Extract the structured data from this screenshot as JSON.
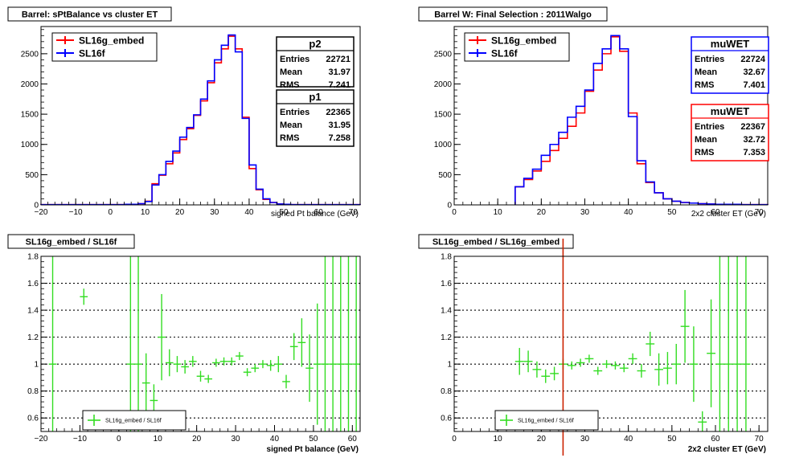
{
  "chart_data": [
    {
      "type": "line",
      "title": "Barrel: sPtBalance vs cluster ET",
      "xlabel": "signed Pt balance (GeV)",
      "ylabel": "",
      "xlim": [
        -20,
        72
      ],
      "ylim": [
        0,
        2950
      ],
      "xticks": [
        -20,
        -10,
        0,
        10,
        20,
        30,
        40,
        50,
        60,
        70
      ],
      "yticks": [
        0,
        500,
        1000,
        1500,
        2000,
        2500
      ],
      "grid": false,
      "legend": "top-left",
      "bin_width": 2,
      "x": [
        -20,
        -18,
        -16,
        -14,
        -12,
        -10,
        -8,
        -6,
        -4,
        -2,
        0,
        2,
        4,
        6,
        8,
        10,
        12,
        14,
        16,
        18,
        20,
        22,
        24,
        26,
        28,
        30,
        32,
        34,
        36,
        38,
        40,
        42,
        44,
        46,
        48,
        50,
        52,
        54,
        56,
        58,
        60,
        62,
        64,
        66,
        68,
        70
      ],
      "series": [
        {
          "name": "SL16g_embed",
          "color": "#ff0000",
          "values": [
            5,
            5,
            5,
            5,
            5,
            5,
            5,
            5,
            5,
            5,
            5,
            5,
            10,
            10,
            20,
            60,
            350,
            490,
            680,
            860,
            1080,
            1260,
            1480,
            1720,
            2020,
            2350,
            2580,
            2790,
            2580,
            1450,
            600,
            250,
            90,
            40,
            15,
            10,
            5,
            5,
            5,
            5,
            5,
            5,
            5,
            5,
            5,
            5
          ]
        },
        {
          "name": "SL16f",
          "color": "#0000ff",
          "values": [
            5,
            5,
            5,
            5,
            5,
            5,
            5,
            5,
            5,
            5,
            5,
            5,
            10,
            10,
            20,
            55,
            330,
            500,
            720,
            890,
            1120,
            1280,
            1490,
            1750,
            2050,
            2400,
            2640,
            2810,
            2530,
            1430,
            660,
            260,
            100,
            40,
            15,
            10,
            5,
            5,
            5,
            5,
            5,
            5,
            5,
            5,
            5,
            5
          ]
        }
      ],
      "stats": [
        {
          "title": "p2",
          "color": "#000000",
          "rows": [
            [
              "Entries",
              "22721"
            ],
            [
              "Mean",
              "31.97"
            ],
            [
              "RMS",
              "7.241"
            ]
          ]
        },
        {
          "title": "p1",
          "color": "#000000",
          "rows": [
            [
              "Entries",
              "22365"
            ],
            [
              "Mean",
              "31.95"
            ],
            [
              "RMS",
              "7.258"
            ]
          ]
        }
      ]
    },
    {
      "type": "line",
      "title": "Barrel W: Final Selection : 2011Walgo",
      "xlabel": "2x2 cluster ET (GeV)",
      "ylabel": "",
      "xlim": [
        0,
        72
      ],
      "ylim": [
        0,
        2950
      ],
      "xticks": [
        0,
        10,
        20,
        30,
        40,
        50,
        60,
        70
      ],
      "yticks": [
        0,
        500,
        1000,
        1500,
        2000,
        2500
      ],
      "grid": false,
      "legend": "top-left",
      "bin_width": 2,
      "x": [
        14,
        16,
        18,
        20,
        22,
        24,
        26,
        28,
        30,
        32,
        34,
        36,
        38,
        40,
        42,
        44,
        46,
        48,
        50,
        52,
        54,
        56,
        58,
        60,
        62,
        64,
        66,
        68,
        70
      ],
      "series": [
        {
          "name": "SL16g_embed",
          "color": "#ff0000",
          "values": [
            300,
            420,
            560,
            720,
            900,
            1100,
            1300,
            1520,
            1880,
            2230,
            2500,
            2780,
            2540,
            1520,
            680,
            370,
            200,
            100,
            60,
            40,
            30,
            20,
            15,
            10,
            10,
            10,
            5,
            5,
            5
          ]
        },
        {
          "name": "SL16f",
          "color": "#0000ff",
          "values": [
            300,
            440,
            590,
            820,
            1000,
            1200,
            1450,
            1630,
            1900,
            2340,
            2580,
            2800,
            2580,
            1460,
            730,
            380,
            200,
            100,
            60,
            40,
            30,
            20,
            15,
            10,
            10,
            10,
            5,
            5,
            5
          ]
        }
      ],
      "stats": [
        {
          "title": "muWET",
          "color": "#0000ff",
          "rows": [
            [
              "Entries",
              "22724"
            ],
            [
              "Mean",
              "32.67"
            ],
            [
              "RMS",
              "7.401"
            ]
          ]
        },
        {
          "title": "muWET",
          "color": "#ff0000",
          "rows": [
            [
              "Entries",
              "22367"
            ],
            [
              "Mean",
              "32.72"
            ],
            [
              "RMS",
              "7.353"
            ]
          ]
        }
      ]
    },
    {
      "type": "scatter",
      "title": "SL16g_embed / SL16f",
      "xlabel": "signed Pt balance (GeV)",
      "ylabel": "",
      "xlim": [
        -20,
        62
      ],
      "ylim": [
        0.5,
        1.8
      ],
      "xticks": [
        -20,
        -10,
        0,
        10,
        20,
        30,
        40,
        50,
        60
      ],
      "yticks": [
        0.6,
        0.8,
        1,
        1.2,
        1.4,
        1.6,
        1.8
      ],
      "grid": true,
      "legend": "bottom-left",
      "series": [
        {
          "name": "SL16g_embed / SL16f",
          "color": "#33dd22",
          "points": [
            {
              "x": -17,
              "y": 1.0,
              "err": 1.0
            },
            {
              "x": -9,
              "y": 1.5,
              "err": 0.06
            },
            {
              "x": 3,
              "y": 1.0,
              "err": 1.0
            },
            {
              "x": 5,
              "y": 1.0,
              "err": 1.0
            },
            {
              "x": 7,
              "y": 0.86,
              "err": 0.22
            },
            {
              "x": 9,
              "y": 0.73,
              "err": 0.12
            },
            {
              "x": 11,
              "y": 1.2,
              "err": 0.32
            },
            {
              "x": 13,
              "y": 1.01,
              "err": 0.1
            },
            {
              "x": 15,
              "y": 1.0,
              "err": 0.06
            },
            {
              "x": 17,
              "y": 0.98,
              "err": 0.05
            },
            {
              "x": 19,
              "y": 1.02,
              "err": 0.04
            },
            {
              "x": 21,
              "y": 0.91,
              "err": 0.04
            },
            {
              "x": 23,
              "y": 0.89,
              "err": 0.03
            },
            {
              "x": 25,
              "y": 1.01,
              "err": 0.03
            },
            {
              "x": 27,
              "y": 1.02,
              "err": 0.03
            },
            {
              "x": 29,
              "y": 1.02,
              "err": 0.03
            },
            {
              "x": 31,
              "y": 1.06,
              "err": 0.03
            },
            {
              "x": 33,
              "y": 0.94,
              "err": 0.03
            },
            {
              "x": 35,
              "y": 0.97,
              "err": 0.03
            },
            {
              "x": 37,
              "y": 1.0,
              "err": 0.03
            },
            {
              "x": 39,
              "y": 0.99,
              "err": 0.04
            },
            {
              "x": 41,
              "y": 1.0,
              "err": 0.06
            },
            {
              "x": 43,
              "y": 0.87,
              "err": 0.05
            },
            {
              "x": 45,
              "y": 1.13,
              "err": 0.1
            },
            {
              "x": 47,
              "y": 1.16,
              "err": 0.18
            },
            {
              "x": 49,
              "y": 0.97,
              "err": 0.25
            },
            {
              "x": 51,
              "y": 1.0,
              "err": 0.45
            },
            {
              "x": 53,
              "y": 1.0,
              "err": 1.0
            },
            {
              "x": 55,
              "y": 1.0,
              "err": 1.0
            },
            {
              "x": 57,
              "y": 1.0,
              "err": 1.0
            },
            {
              "x": 59,
              "y": 1.0,
              "err": 1.0
            },
            {
              "x": 61,
              "y": 1.0,
              "err": 1.0
            }
          ]
        }
      ]
    },
    {
      "type": "scatter",
      "title": "SL16g_embed / SL16g_embed",
      "xlabel": "2x2 cluster ET (GeV)",
      "ylabel": "",
      "xlim": [
        0,
        72
      ],
      "ylim": [
        0.5,
        1.8
      ],
      "xticks": [
        0,
        10,
        20,
        30,
        40,
        50,
        60,
        70
      ],
      "yticks": [
        0.6,
        0.8,
        1,
        1.2,
        1.4,
        1.6,
        1.8
      ],
      "grid": true,
      "legend": "bottom-left",
      "vline": {
        "x": 25,
        "color": "#cc2200"
      },
      "series": [
        {
          "name": "SL16g_embed / SL16f",
          "color": "#33dd22",
          "points": [
            {
              "x": 15,
              "y": 1.02,
              "err": 0.1
            },
            {
              "x": 17,
              "y": 1.02,
              "err": 0.08
            },
            {
              "x": 19,
              "y": 0.96,
              "err": 0.06
            },
            {
              "x": 21,
              "y": 0.91,
              "err": 0.05
            },
            {
              "x": 23,
              "y": 0.93,
              "err": 0.05
            },
            {
              "x": 25,
              "y": 1.0,
              "err": 0.04
            },
            {
              "x": 27,
              "y": 0.99,
              "err": 0.03
            },
            {
              "x": 29,
              "y": 1.01,
              "err": 0.03
            },
            {
              "x": 31,
              "y": 1.04,
              "err": 0.03
            },
            {
              "x": 33,
              "y": 0.95,
              "err": 0.03
            },
            {
              "x": 35,
              "y": 1.0,
              "err": 0.03
            },
            {
              "x": 37,
              "y": 0.99,
              "err": 0.03
            },
            {
              "x": 39,
              "y": 0.97,
              "err": 0.03
            },
            {
              "x": 41,
              "y": 1.04,
              "err": 0.04
            },
            {
              "x": 43,
              "y": 0.95,
              "err": 0.05
            },
            {
              "x": 45,
              "y": 1.15,
              "err": 0.09
            },
            {
              "x": 47,
              "y": 0.96,
              "err": 0.12
            },
            {
              "x": 49,
              "y": 0.97,
              "err": 0.12
            },
            {
              "x": 51,
              "y": 1.0,
              "err": 0.15
            },
            {
              "x": 53,
              "y": 1.28,
              "err": 0.27
            },
            {
              "x": 55,
              "y": 1.0,
              "err": 0.28
            },
            {
              "x": 57,
              "y": 0.57,
              "err": 0.08
            },
            {
              "x": 59,
              "y": 1.08,
              "err": 0.4
            },
            {
              "x": 61,
              "y": 1.0,
              "err": 1.0
            },
            {
              "x": 63,
              "y": 1.0,
              "err": 1.0
            },
            {
              "x": 65,
              "y": 1.0,
              "err": 1.0
            },
            {
              "x": 67,
              "y": 1.0,
              "err": 1.0
            }
          ]
        }
      ]
    }
  ]
}
